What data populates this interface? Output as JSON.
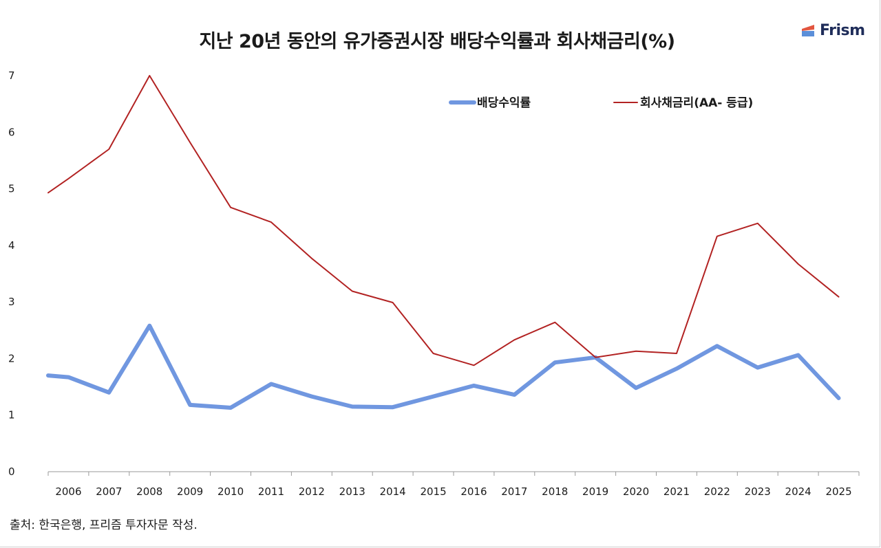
{
  "brand": {
    "name": "Frism",
    "icon": "frism-logo-icon",
    "colors": [
      "#e2553f",
      "#5b8fd9"
    ]
  },
  "source_note": "출처: 한국은행, 프리즘 투자자문 작성.",
  "chart_data": {
    "type": "line",
    "title": "지난 20년 동안의 유가증권시장 배당수익률과 회사채금리(%)",
    "categories": [
      "2006",
      "2007",
      "2008",
      "2009",
      "2010",
      "2011",
      "2012",
      "2013",
      "2014",
      "2015",
      "2016",
      "2017",
      "2018",
      "2019",
      "2020",
      "2021",
      "2022",
      "2023",
      "2024",
      "2025"
    ],
    "y_ticks": [
      0,
      1,
      2,
      3,
      4,
      5,
      6,
      7
    ],
    "ylim": [
      0,
      7
    ],
    "grid": false,
    "legend_position": "top-center",
    "series": [
      {
        "name": "배당수익률",
        "color": "#7097e0",
        "x": [
          2005.0,
          2005.5,
          2006.5,
          2007.5,
          2008.5,
          2009.5,
          2010.5,
          2011.5,
          2012.5,
          2013.5,
          2014.5,
          2015.5,
          2016.5,
          2017.5,
          2018.5,
          2019.5,
          2020.5,
          2021.5,
          2022.5,
          2023.5,
          2024.5
        ],
        "y": [
          1.7,
          1.67,
          1.4,
          2.58,
          1.18,
          1.13,
          1.55,
          1.33,
          1.15,
          1.14,
          1.33,
          1.52,
          1.36,
          1.93,
          2.02,
          1.48,
          1.82,
          2.22,
          1.84,
          2.06,
          1.3
        ]
      },
      {
        "name": "회사채금리(AA- 등급)",
        "color": "#b22222",
        "x": [
          2005.0,
          2005.5,
          2006.5,
          2007.5,
          2008.5,
          2009.5,
          2010.5,
          2011.5,
          2012.5,
          2013.5,
          2014.5,
          2015.5,
          2016.5,
          2017.5,
          2018.5,
          2019.5,
          2020.5,
          2021.5,
          2022.5,
          2023.5,
          2024.5
        ],
        "y": [
          4.93,
          5.18,
          5.7,
          7.0,
          5.82,
          4.67,
          4.41,
          3.77,
          3.19,
          2.99,
          2.09,
          1.88,
          2.33,
          2.64,
          2.02,
          2.13,
          2.09,
          4.16,
          4.39,
          3.67,
          3.09
        ]
      }
    ]
  }
}
